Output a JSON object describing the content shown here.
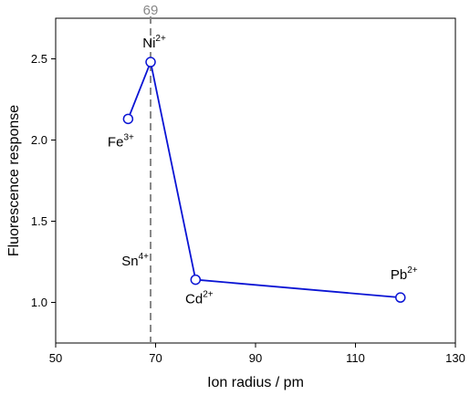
{
  "chart_data": {
    "type": "scatter",
    "xlabel": "Ion radius / pm",
    "ylabel": "Fluorescence response",
    "xlim": [
      50,
      130
    ],
    "ylim": [
      0.75,
      2.75
    ],
    "xticks": [
      50,
      70,
      90,
      110,
      130
    ],
    "yticks": [
      1.0,
      1.5,
      2.0,
      2.5
    ],
    "xtick_labels": [
      "50",
      "70",
      "90",
      "110",
      "130"
    ],
    "ytick_labels": [
      "1.0",
      "1.5",
      "2.0",
      "2.5"
    ],
    "grid": false,
    "line_color": "#0a14d4",
    "marker": "open-circle",
    "series": [
      {
        "points": [
          {
            "ion": "Fe",
            "charge": "3+",
            "x": 64.5,
            "y": 2.13
          },
          {
            "ion": "Ni",
            "charge": "2+",
            "x": 69,
            "y": 2.48
          },
          {
            "ion": "Cd",
            "charge": "2+",
            "x": 78,
            "y": 1.14
          },
          {
            "ion": "Pb",
            "charge": "2+",
            "x": 119,
            "y": 1.03
          }
        ],
        "connected_order": [
          "Ni",
          "Cd",
          "Pb"
        ],
        "fe_connected_to": "Ni"
      }
    ],
    "reference_line": {
      "x": 69,
      "label": "69",
      "color": "#888888",
      "style": "dashed"
    },
    "annotations": [
      {
        "ion": "Sn",
        "charge": "4+",
        "x": 69
      }
    ]
  }
}
